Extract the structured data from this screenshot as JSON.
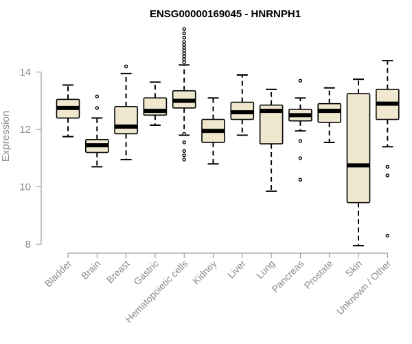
{
  "chart_data": {
    "type": "box",
    "title": "ENSG00000169045 - HNRNPH1",
    "ylabel": "Expression",
    "xlabel": "",
    "ylim": [
      7.8,
      15.7
    ],
    "yticks": [
      8,
      10,
      12,
      14
    ],
    "grid": false,
    "colors": {
      "box_fill": "#efe8cf",
      "box_stroke": "#000000",
      "axis": "#8a8a8a"
    },
    "categories": [
      "Bladder",
      "Brain",
      "Breast",
      "Gastric",
      "Hematopoietic cells",
      "Kidney",
      "Liver",
      "Lung",
      "Pancreas",
      "Prostate",
      "Skin",
      "Unknown / Other"
    ],
    "boxes": [
      {
        "category": "Bladder",
        "whisker_low": 11.75,
        "q1": 12.4,
        "median": 12.75,
        "q3": 13.05,
        "whisker_high": 13.55,
        "outliers": []
      },
      {
        "category": "Brain",
        "whisker_low": 10.7,
        "q1": 11.2,
        "median": 11.45,
        "q3": 11.65,
        "whisker_high": 12.4,
        "outliers": [
          12.75,
          13.15
        ]
      },
      {
        "category": "Breast",
        "whisker_low": 10.95,
        "q1": 11.85,
        "median": 12.1,
        "q3": 12.8,
        "whisker_high": 13.95,
        "outliers": [
          14.2
        ]
      },
      {
        "category": "Gastric",
        "whisker_low": 12.15,
        "q1": 12.5,
        "median": 12.65,
        "q3": 13.1,
        "whisker_high": 13.65,
        "outliers": []
      },
      {
        "category": "Hematopoietic cells",
        "whisker_low": 11.8,
        "q1": 12.75,
        "median": 13.0,
        "q3": 13.35,
        "whisker_high": 14.25,
        "outliers": [
          10.95,
          11.1,
          11.25,
          11.55,
          11.85,
          14.35,
          14.45,
          14.55,
          14.65,
          14.75,
          14.85,
          14.95,
          15.05,
          15.2,
          15.35,
          15.5
        ]
      },
      {
        "category": "Kidney",
        "whisker_low": 10.8,
        "q1": 11.55,
        "median": 11.95,
        "q3": 12.35,
        "whisker_high": 13.1,
        "outliers": []
      },
      {
        "category": "Liver",
        "whisker_low": 11.8,
        "q1": 12.35,
        "median": 12.6,
        "q3": 12.95,
        "whisker_high": 13.9,
        "outliers": []
      },
      {
        "category": "Lung",
        "whisker_low": 9.85,
        "q1": 11.5,
        "median": 12.65,
        "q3": 12.85,
        "whisker_high": 13.4,
        "outliers": []
      },
      {
        "category": "Pancreas",
        "whisker_low": 11.95,
        "q1": 12.3,
        "median": 12.5,
        "q3": 12.7,
        "whisker_high": 13.1,
        "outliers": [
          10.25,
          11.0,
          11.6,
          13.7
        ]
      },
      {
        "category": "Prostate",
        "whisker_low": 11.55,
        "q1": 12.25,
        "median": 12.65,
        "q3": 12.9,
        "whisker_high": 13.45,
        "outliers": []
      },
      {
        "category": "Skin",
        "whisker_low": 7.95,
        "q1": 9.45,
        "median": 10.75,
        "q3": 13.25,
        "whisker_high": 13.75,
        "outliers": []
      },
      {
        "category": "Unknown / Other",
        "whisker_low": 11.4,
        "q1": 12.35,
        "median": 12.9,
        "q3": 13.4,
        "whisker_high": 14.4,
        "outliers": [
          8.3,
          10.4,
          10.7
        ]
      }
    ]
  }
}
